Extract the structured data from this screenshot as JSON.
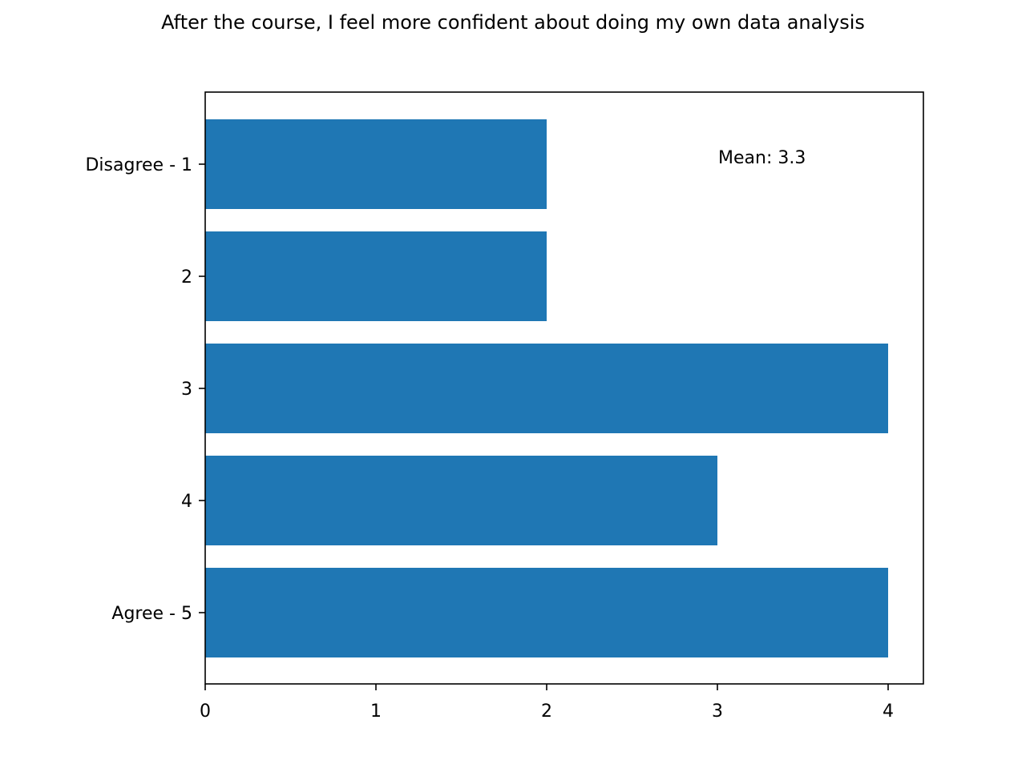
{
  "chart_data": {
    "type": "bar",
    "orientation": "horizontal",
    "title": "After the course, I feel more confident about doing my own data analysis",
    "xlabel": "",
    "ylabel": "",
    "categories": [
      "Disagree - 1",
      "2",
      "3",
      "4",
      "Agree - 5"
    ],
    "values": [
      2,
      2,
      4,
      3,
      4
    ],
    "xlim": [
      0,
      4.2
    ],
    "xticks": [
      0,
      1,
      2,
      3,
      4
    ],
    "grid": false,
    "bar_color": "#1f77b4",
    "annotation": "Mean: 3.3"
  }
}
